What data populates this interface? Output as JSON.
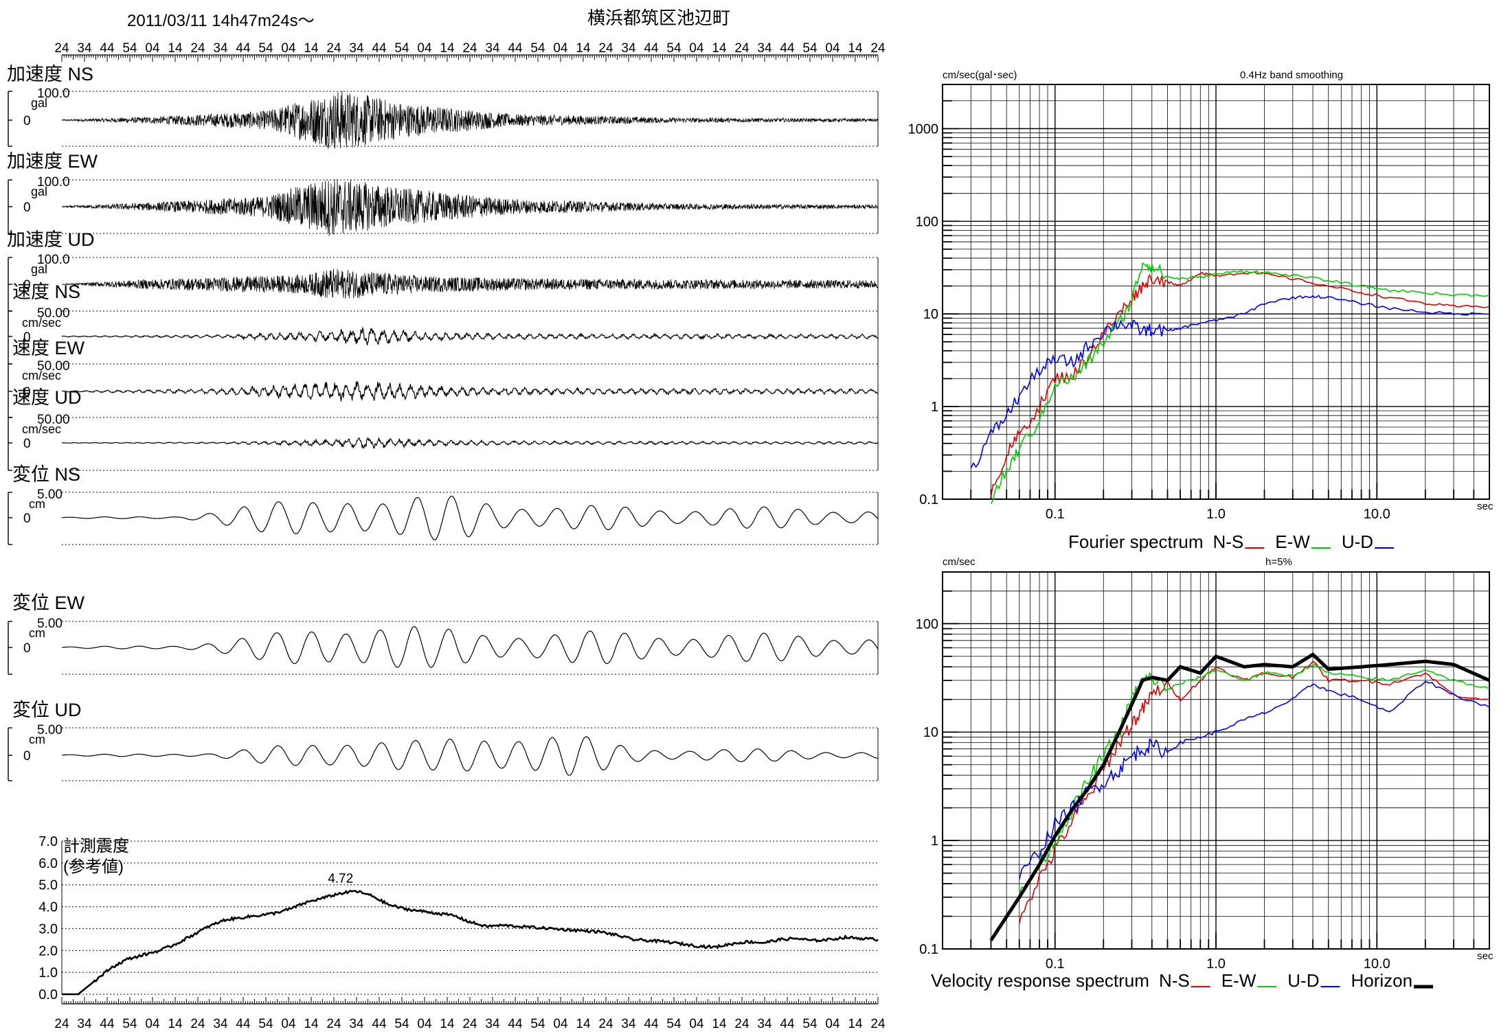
{
  "header": {
    "datetime": "2011/03/11  14h47m24s〜",
    "station": "横浜都筑区池辺町",
    "time_tick_labels": [
      "24",
      "34",
      "44",
      "54",
      "04",
      "14",
      "24",
      "34",
      "44",
      "54",
      "04",
      "14",
      "24",
      "34",
      "44",
      "54",
      "04",
      "14",
      "24",
      "34",
      "44",
      "54",
      "04",
      "14",
      "24",
      "34",
      "44",
      "54",
      "04",
      "14",
      "24",
      "34",
      "44",
      "54",
      "04",
      "14",
      "24"
    ]
  },
  "colors": {
    "ns": "#e00000",
    "ew": "#00cc00",
    "ud": "#0000ee",
    "horizon": "#000000",
    "trace": "#000000"
  },
  "chart_data": [
    {
      "type": "line",
      "id": "waveforms",
      "series": [
        {
          "label": "加速度 NS",
          "scale_label": "100.0",
          "unit": "gal",
          "zero_label": "0",
          "kind": "acc",
          "amp": 0.95,
          "envelope": [
            [
              0,
              0.02
            ],
            [
              0.12,
              0.12
            ],
            [
              0.25,
              0.3
            ],
            [
              0.34,
              1.0
            ],
            [
              0.42,
              0.55
            ],
            [
              0.55,
              0.2
            ],
            [
              0.75,
              0.08
            ],
            [
              1,
              0.05
            ]
          ]
        },
        {
          "label": "加速度 EW",
          "scale_label": "100.0",
          "unit": "gal",
          "zero_label": "0",
          "kind": "acc",
          "amp": 0.95,
          "envelope": [
            [
              0,
              0.02
            ],
            [
              0.12,
              0.15
            ],
            [
              0.25,
              0.35
            ],
            [
              0.33,
              1.0
            ],
            [
              0.42,
              0.6
            ],
            [
              0.55,
              0.25
            ],
            [
              0.75,
              0.1
            ],
            [
              1,
              0.06
            ]
          ]
        },
        {
          "label": "加速度 UD",
          "scale_label": "100.0",
          "unit": "gal",
          "zero_label": "0",
          "kind": "acc",
          "amp": 0.5,
          "envelope": [
            [
              0,
              0.02
            ],
            [
              0.1,
              0.3
            ],
            [
              0.3,
              0.6
            ],
            [
              0.33,
              1.0
            ],
            [
              0.45,
              0.5
            ],
            [
              0.6,
              0.35
            ],
            [
              1,
              0.25
            ]
          ]
        },
        {
          "label": "速度 NS",
          "scale_label": "50.00",
          "unit": "cm/sec",
          "zero_label": "0",
          "kind": "vel",
          "amp": 0.3,
          "envelope": [
            [
              0,
              0.05
            ],
            [
              0.2,
              0.2
            ],
            [
              0.33,
              0.7
            ],
            [
              0.37,
              1.0
            ],
            [
              0.45,
              0.45
            ],
            [
              0.6,
              0.3
            ],
            [
              1,
              0.25
            ]
          ]
        },
        {
          "label": "速度 EW",
          "scale_label": "50.00",
          "unit": "cm/sec",
          "zero_label": "0",
          "kind": "vel",
          "amp": 0.35,
          "envelope": [
            [
              0,
              0.05
            ],
            [
              0.2,
              0.3
            ],
            [
              0.33,
              0.9
            ],
            [
              0.38,
              1.0
            ],
            [
              0.46,
              0.5
            ],
            [
              0.6,
              0.3
            ],
            [
              1,
              0.25
            ]
          ]
        },
        {
          "label": "速度 UD",
          "scale_label": "50.00",
          "unit": "cm/sec",
          "zero_label": "0",
          "kind": "vel",
          "amp": 0.2,
          "envelope": [
            [
              0,
              0.03
            ],
            [
              0.2,
              0.15
            ],
            [
              0.35,
              0.7
            ],
            [
              0.37,
              1.0
            ],
            [
              0.45,
              0.5
            ],
            [
              0.6,
              0.3
            ],
            [
              1,
              0.2
            ]
          ]
        },
        {
          "label": "変位 NS",
          "scale_label": "5.00",
          "unit": "cm",
          "zero_label": "0",
          "kind": "disp",
          "amp": 0.9,
          "envelope": [
            [
              0,
              0.02
            ],
            [
              0.14,
              0.05
            ],
            [
              0.2,
              0.35
            ],
            [
              0.3,
              0.7
            ],
            [
              0.35,
              1.0
            ],
            [
              0.4,
              0.7
            ],
            [
              0.5,
              0.85
            ],
            [
              0.6,
              0.45
            ],
            [
              0.8,
              0.4
            ],
            [
              1,
              0.35
            ]
          ]
        },
        {
          "label": "変位 EW",
          "scale_label": "5.00",
          "unit": "cm",
          "zero_label": "0",
          "kind": "disp",
          "amp": 0.9,
          "envelope": [
            [
              0,
              0.02
            ],
            [
              0.14,
              0.08
            ],
            [
              0.25,
              0.45
            ],
            [
              0.33,
              0.9
            ],
            [
              0.37,
              1.0
            ],
            [
              0.45,
              0.7
            ],
            [
              0.6,
              0.6
            ],
            [
              1,
              0.45
            ]
          ]
        },
        {
          "label": "変位 UD",
          "scale_label": "5.00",
          "unit": "cm",
          "zero_label": "0",
          "kind": "disp",
          "amp": 0.9,
          "envelope": [
            [
              0,
              0.02
            ],
            [
              0.18,
              0.08
            ],
            [
              0.3,
              0.45
            ],
            [
              0.36,
              0.75
            ],
            [
              0.45,
              0.5
            ],
            [
              0.56,
              0.95
            ],
            [
              0.62,
              0.8
            ],
            [
              0.7,
              0.3
            ],
            [
              1,
              0.15
            ]
          ]
        }
      ]
    },
    {
      "type": "line",
      "id": "intensity",
      "title": "計測震度",
      "subtitle": "(参考値)",
      "peak_label": "4.72",
      "y_ticks": [
        "0.0",
        "1.0",
        "2.0",
        "3.0",
        "4.0",
        "5.0",
        "6.0",
        "7.0"
      ],
      "ylim": [
        0,
        7
      ],
      "x": [
        0.0,
        0.02,
        0.04,
        0.06,
        0.08,
        0.1,
        0.12,
        0.14,
        0.16,
        0.18,
        0.2,
        0.22,
        0.24,
        0.26,
        0.28,
        0.3,
        0.32,
        0.34,
        0.36,
        0.38,
        0.4,
        0.42,
        0.44,
        0.46,
        0.48,
        0.5,
        0.52,
        0.54,
        0.56,
        0.58,
        0.6,
        0.62,
        0.64,
        0.66,
        0.68,
        0.7,
        0.72,
        0.74,
        0.76,
        0.78,
        0.8,
        0.82,
        0.84,
        0.86,
        0.88,
        0.9,
        0.92,
        0.94,
        0.96,
        0.98,
        1.0
      ],
      "y": [
        0.0,
        0.0,
        0.6,
        1.2,
        1.6,
        1.8,
        2.0,
        2.3,
        2.7,
        3.1,
        3.4,
        3.5,
        3.6,
        3.7,
        3.9,
        4.2,
        4.4,
        4.6,
        4.72,
        4.5,
        4.1,
        3.9,
        3.8,
        3.7,
        3.6,
        3.3,
        3.1,
        3.15,
        3.1,
        3.05,
        3.0,
        2.95,
        2.9,
        2.85,
        2.7,
        2.5,
        2.45,
        2.4,
        2.3,
        2.2,
        2.15,
        2.3,
        2.4,
        2.35,
        2.5,
        2.55,
        2.45,
        2.5,
        2.6,
        2.55,
        2.5
      ]
    },
    {
      "type": "line",
      "id": "fourier",
      "ylabel": "cm/sec(gal･sec)",
      "title": "0.4Hz band smoothing",
      "legend_caption": "Fourier spectrum",
      "x_unit": "sec",
      "xscale": "log",
      "yscale": "log",
      "xlim": [
        0.02,
        50
      ],
      "ylim": [
        0.1,
        3000
      ],
      "x_tick_labels": [
        "0.1",
        "1.0",
        "10.0"
      ],
      "y_tick_labels": [
        "0.1",
        "1",
        "10",
        "100",
        "1000"
      ],
      "series": [
        {
          "name": "N-S",
          "color": "#e00000",
          "x": [
            0.04,
            0.05,
            0.06,
            0.08,
            0.1,
            0.13,
            0.16,
            0.2,
            0.25,
            0.3,
            0.35,
            0.4,
            0.5,
            0.6,
            0.8,
            1.0,
            1.5,
            2,
            3,
            5,
            8,
            12,
            20,
            30,
            50
          ],
          "y": [
            0.12,
            0.3,
            0.5,
            1.0,
            2.0,
            2.2,
            3.5,
            6,
            10,
            15,
            20,
            25,
            22,
            20,
            28,
            26,
            28,
            27,
            24,
            20,
            17,
            15,
            13,
            12,
            12
          ]
        },
        {
          "name": "E-W",
          "color": "#00cc00",
          "x": [
            0.04,
            0.05,
            0.06,
            0.08,
            0.1,
            0.13,
            0.16,
            0.2,
            0.25,
            0.3,
            0.35,
            0.4,
            0.5,
            0.6,
            0.8,
            1.0,
            1.5,
            2,
            3,
            5,
            8,
            12,
            20,
            30,
            50
          ],
          "y": [
            0.1,
            0.2,
            0.35,
            0.7,
            1.8,
            2.0,
            3.0,
            5,
            8,
            14,
            36,
            33,
            25,
            24,
            25,
            27,
            29,
            28,
            26,
            23,
            20,
            18,
            17,
            16,
            16
          ]
        },
        {
          "name": "U-D",
          "color": "#0000ee",
          "x": [
            0.03,
            0.04,
            0.05,
            0.06,
            0.08,
            0.1,
            0.13,
            0.16,
            0.2,
            0.25,
            0.3,
            0.35,
            0.4,
            0.5,
            0.6,
            0.8,
            1.0,
            1.5,
            2,
            3,
            4,
            5,
            8,
            12,
            20,
            30,
            50
          ],
          "y": [
            0.2,
            0.5,
            0.8,
            1.3,
            2.5,
            3.2,
            3.0,
            4.5,
            6.5,
            8,
            7.5,
            6.5,
            6.8,
            6.5,
            7,
            8,
            8.5,
            10,
            13,
            15,
            15.5,
            15,
            13,
            11.5,
            10.5,
            10,
            10
          ]
        }
      ]
    },
    {
      "type": "line",
      "id": "velocity_response",
      "ylabel": "cm/sec",
      "title": "h=5%",
      "legend_caption": "Velocity response spectrum",
      "x_unit": "sec",
      "xscale": "log",
      "yscale": "log",
      "xlim": [
        0.02,
        50
      ],
      "ylim": [
        0.1,
        300
      ],
      "x_tick_labels": [
        "0.1",
        "1.0",
        "10.0"
      ],
      "y_tick_labels": [
        "0.1",
        "1",
        "10",
        "100"
      ],
      "series": [
        {
          "name": "N-S",
          "color": "#e00000",
          "x": [
            0.06,
            0.08,
            0.1,
            0.13,
            0.16,
            0.2,
            0.25,
            0.3,
            0.35,
            0.4,
            0.5,
            0.6,
            0.8,
            1.0,
            1.5,
            2,
            3,
            4,
            5,
            8,
            12,
            20,
            30,
            50
          ],
          "y": [
            0.2,
            0.45,
            0.8,
            1.6,
            2.5,
            4.5,
            8,
            12,
            16,
            22,
            28,
            20,
            30,
            40,
            30,
            35,
            32,
            45,
            30,
            30,
            28,
            35,
            22,
            20
          ]
        },
        {
          "name": "E-W",
          "color": "#00cc00",
          "x": [
            0.06,
            0.08,
            0.1,
            0.13,
            0.16,
            0.2,
            0.25,
            0.3,
            0.35,
            0.4,
            0.5,
            0.6,
            0.8,
            1.0,
            1.5,
            2,
            3,
            4,
            5,
            8,
            12,
            20,
            30,
            50
          ],
          "y": [
            0.3,
            0.6,
            1.0,
            2.0,
            3.5,
            6,
            10,
            20,
            30,
            32,
            25,
            28,
            32,
            38,
            30,
            35,
            33,
            42,
            35,
            32,
            30,
            38,
            30,
            25
          ]
        },
        {
          "name": "U-D",
          "color": "#0000ee",
          "x": [
            0.06,
            0.08,
            0.1,
            0.13,
            0.16,
            0.2,
            0.25,
            0.3,
            0.35,
            0.4,
            0.5,
            0.6,
            0.8,
            1.0,
            1.5,
            2,
            3,
            4,
            5,
            8,
            12,
            20,
            30,
            50
          ],
          "y": [
            0.45,
            0.8,
            1.4,
            2.0,
            2.8,
            3.5,
            4.5,
            6,
            7,
            7.5,
            6.5,
            8,
            9,
            10,
            13,
            15,
            20,
            28,
            24,
            20,
            15,
            30,
            22,
            17
          ]
        },
        {
          "name": "Horizon",
          "color": "#000000",
          "x": [
            0.04,
            0.06,
            0.08,
            0.1,
            0.13,
            0.16,
            0.2,
            0.25,
            0.3,
            0.35,
            0.4,
            0.5,
            0.6,
            0.8,
            1.0,
            1.5,
            2,
            3,
            4,
            5,
            8,
            12,
            20,
            30,
            50
          ],
          "y": [
            0.12,
            0.3,
            0.6,
            1.1,
            2.0,
            3.0,
            5,
            10,
            18,
            30,
            32,
            30,
            40,
            35,
            50,
            40,
            42,
            40,
            52,
            38,
            40,
            42,
            45,
            42,
            30
          ]
        }
      ]
    }
  ]
}
